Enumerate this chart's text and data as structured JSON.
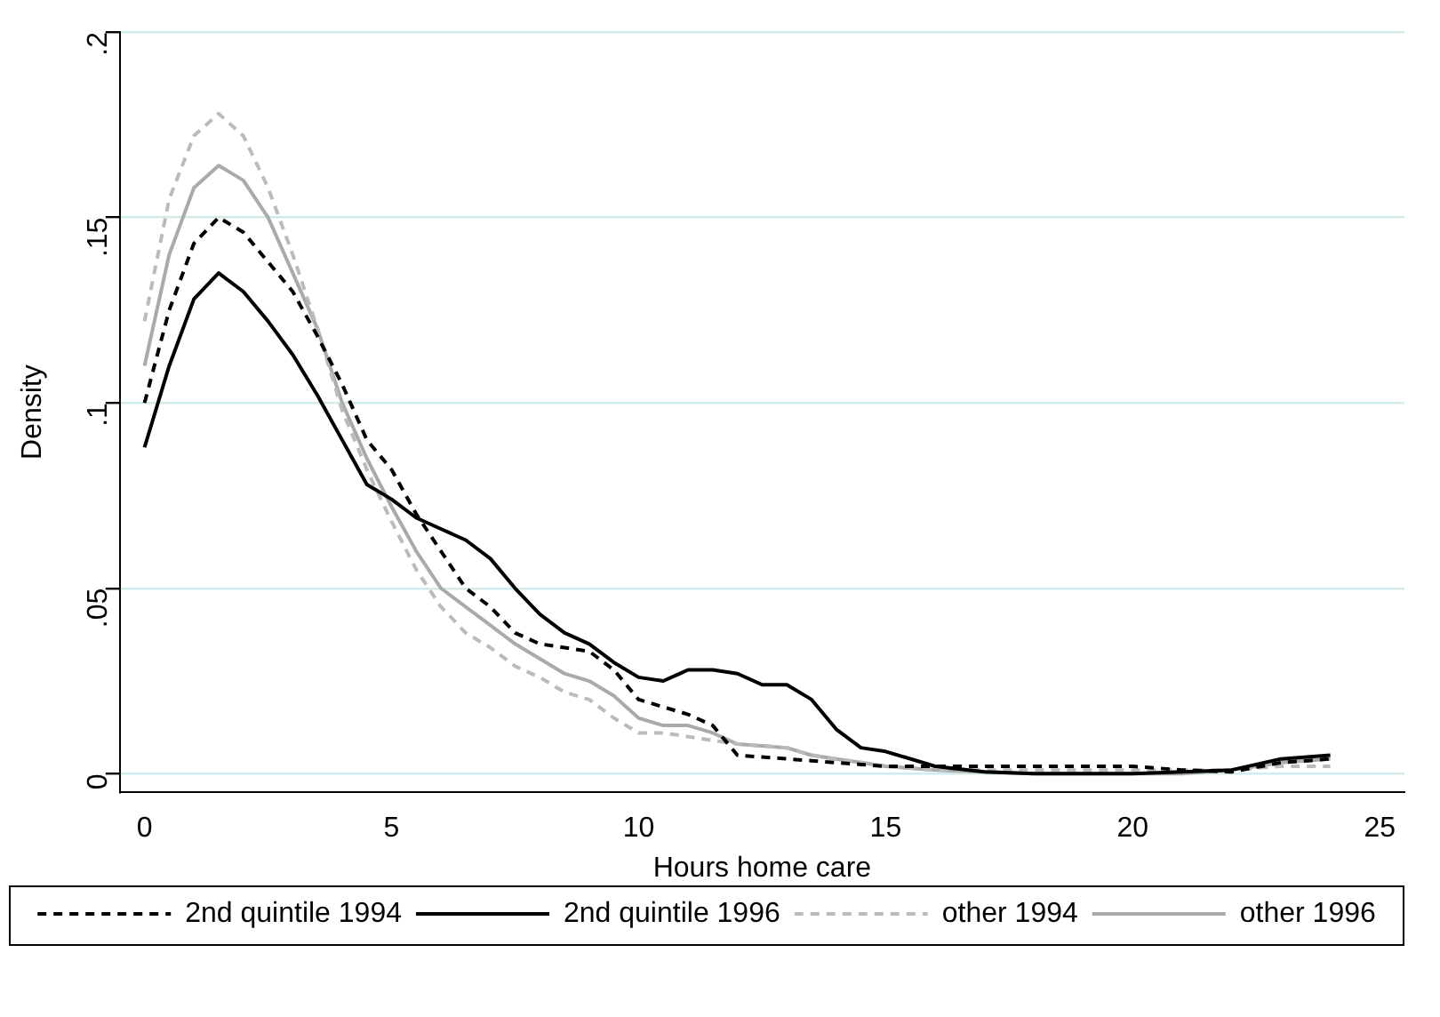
{
  "chart_data": {
    "type": "line",
    "xlabel": "Hours home care",
    "ylabel": "Density",
    "x": [
      0,
      0.5,
      1,
      1.5,
      2,
      2.5,
      3,
      3.5,
      4,
      4.5,
      5,
      5.5,
      6,
      6.5,
      7,
      7.5,
      8,
      8.5,
      9,
      9.5,
      10,
      10.5,
      11,
      11.5,
      12,
      12.5,
      13,
      13.5,
      14,
      14.5,
      15,
      16,
      17,
      18,
      19,
      20,
      21,
      22,
      23,
      24
    ],
    "xlim": [
      -0.5,
      25.5
    ],
    "xticks": [
      0,
      5,
      10,
      15,
      20,
      25
    ],
    "ylim": [
      -0.005,
      0.2
    ],
    "yticks": [
      {
        "value": 0,
        "label": "0"
      },
      {
        "value": 0.05,
        "label": ".05"
      },
      {
        "value": 0.1,
        "label": ".1"
      },
      {
        "value": 0.15,
        "label": ".15"
      },
      {
        "value": 0.2,
        "label": ".2"
      }
    ],
    "grid": "y",
    "legend": "bottom",
    "marker": "none",
    "series": [
      {
        "name": "2nd quintile 1994",
        "color": "#000000",
        "line_style": "dashed",
        "values": [
          0.1,
          0.125,
          0.143,
          0.15,
          0.146,
          0.138,
          0.13,
          0.118,
          0.105,
          0.09,
          0.082,
          0.07,
          0.06,
          0.05,
          0.045,
          0.038,
          0.035,
          0.034,
          0.033,
          0.028,
          0.02,
          0.018,
          0.016,
          0.013,
          0.005,
          0.0045,
          0.004,
          0.0035,
          0.003,
          0.0025,
          0.002,
          0.002,
          0.002,
          0.002,
          0.002,
          0.002,
          0.001,
          0.0005,
          0.003,
          0.004
        ]
      },
      {
        "name": "2nd quintile 1996",
        "color": "#000000",
        "line_style": "solid",
        "values": [
          0.088,
          0.11,
          0.128,
          0.135,
          0.13,
          0.122,
          0.113,
          0.102,
          0.09,
          0.078,
          0.074,
          0.069,
          0.066,
          0.063,
          0.058,
          0.05,
          0.043,
          0.038,
          0.035,
          0.03,
          0.026,
          0.025,
          0.028,
          0.028,
          0.027,
          0.024,
          0.024,
          0.02,
          0.012,
          0.007,
          0.006,
          0.002,
          0.0005,
          0,
          0,
          0,
          0.0005,
          0.001,
          0.004,
          0.005
        ]
      },
      {
        "name": "other 1994",
        "color": "#bbbbbb",
        "line_style": "dashed",
        "values": [
          0.122,
          0.155,
          0.172,
          0.178,
          0.172,
          0.158,
          0.14,
          0.12,
          0.098,
          0.082,
          0.068,
          0.055,
          0.045,
          0.038,
          0.034,
          0.029,
          0.026,
          0.022,
          0.02,
          0.015,
          0.011,
          0.011,
          0.01,
          0.009,
          0.008,
          0.0075,
          0.007,
          0.005,
          0.004,
          0.003,
          0.002,
          0.001,
          0.001,
          0.001,
          0.001,
          0.001,
          0.001,
          0.001,
          0.002,
          0.002
        ]
      },
      {
        "name": "other 1996",
        "color": "#aaaaaa",
        "line_style": "solid",
        "values": [
          0.11,
          0.14,
          0.158,
          0.164,
          0.16,
          0.15,
          0.135,
          0.12,
          0.1,
          0.085,
          0.072,
          0.06,
          0.05,
          0.045,
          0.04,
          0.035,
          0.031,
          0.027,
          0.025,
          0.021,
          0.015,
          0.013,
          0.013,
          0.011,
          0.008,
          0.0075,
          0.007,
          0.005,
          0.004,
          0.003,
          0.002,
          0.001,
          0.0005,
          0,
          0,
          0,
          0,
          0.001,
          0.003,
          0.004
        ]
      }
    ]
  }
}
